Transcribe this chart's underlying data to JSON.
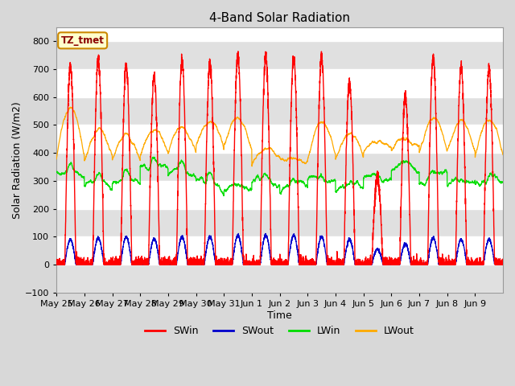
{
  "title": "4-Band Solar Radiation",
  "xlabel": "Time",
  "ylabel": "Solar Radiation (W/m2)",
  "ylim": [
    -100,
    850
  ],
  "yticks": [
    -100,
    0,
    100,
    200,
    300,
    400,
    500,
    600,
    700,
    800
  ],
  "legend_label": "TZ_tmet",
  "x_tick_labels": [
    "May 25",
    "May 26",
    "May 27",
    "May 28",
    "May 29",
    "May 30",
    "May 31",
    "Jun 1",
    "Jun 2",
    "Jun 3",
    "Jun 4",
    "Jun 5",
    "Jun 6",
    "Jun 7",
    "Jun 8",
    "Jun 9"
  ],
  "colors": {
    "SWin": "#ff0000",
    "SWout": "#0000cc",
    "LWin": "#00dd00",
    "LWout": "#ffaa00"
  },
  "plot_bg_color": "#ffffff",
  "band_color_dark": "#e0e0e0",
  "band_color_light": "#f0f0f0",
  "legend_box_color": "#ffffcc",
  "legend_box_border": "#cc8800",
  "n_days": 16,
  "pts_per_day": 288,
  "figsize": [
    6.4,
    4.8
  ],
  "dpi": 100
}
